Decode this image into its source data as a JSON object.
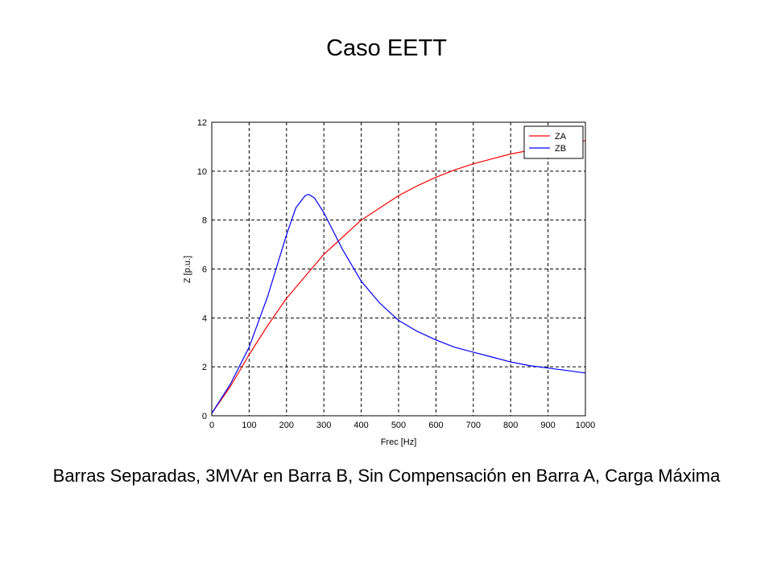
{
  "slide": {
    "title": "Caso EETT",
    "caption": "Barras Separadas, 3MVAr en Barra B, Sin Compensación en Barra A, Carga Máxima"
  },
  "chart_data": {
    "type": "line",
    "xlabel": "Frec [Hz]",
    "ylabel": "Z [p.u.]",
    "xlim": [
      0,
      1000
    ],
    "ylim": [
      0,
      12
    ],
    "xticks": [
      0,
      100,
      200,
      300,
      400,
      500,
      600,
      700,
      800,
      900,
      1000
    ],
    "yticks": [
      0,
      2,
      4,
      6,
      8,
      10,
      12
    ],
    "grid": true,
    "legend_position": "top-right",
    "series": [
      {
        "name": "ZA",
        "color": "#ff0000",
        "x": [
          0,
          50,
          100,
          150,
          200,
          250,
          300,
          350,
          400,
          450,
          500,
          550,
          600,
          650,
          700,
          750,
          800,
          850,
          900,
          950,
          1000
        ],
        "y": [
          0.1,
          1.2,
          2.5,
          3.7,
          4.8,
          5.7,
          6.6,
          7.3,
          8.0,
          8.5,
          9.0,
          9.4,
          9.75,
          10.05,
          10.3,
          10.5,
          10.7,
          10.85,
          11.0,
          11.1,
          11.25
        ]
      },
      {
        "name": "ZB",
        "color": "#0000ff",
        "x": [
          0,
          50,
          100,
          150,
          200,
          225,
          250,
          260,
          275,
          300,
          350,
          400,
          450,
          500,
          550,
          600,
          650,
          700,
          750,
          800,
          850,
          900,
          950,
          1000
        ],
        "y": [
          0.1,
          1.3,
          2.8,
          4.9,
          7.4,
          8.5,
          9.0,
          9.05,
          8.9,
          8.3,
          6.8,
          5.5,
          4.6,
          3.9,
          3.45,
          3.1,
          2.8,
          2.6,
          2.4,
          2.2,
          2.05,
          1.95,
          1.85,
          1.75
        ]
      }
    ]
  }
}
